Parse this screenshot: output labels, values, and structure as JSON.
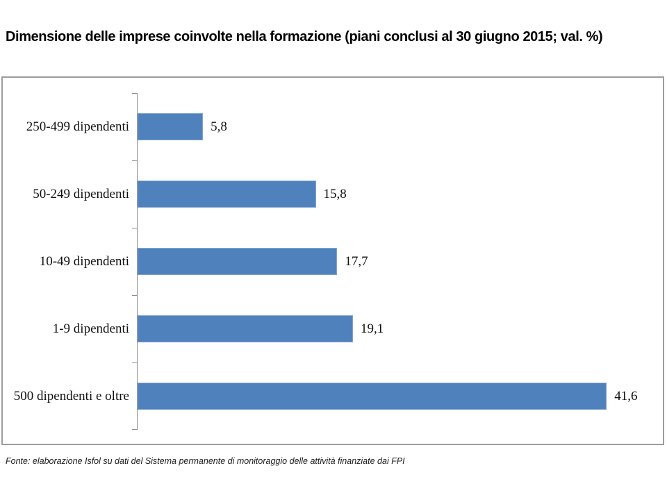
{
  "page": {
    "title": "Dimensione delle imprese coinvolte nella formazione (piani conclusi al 30 giugno 2015; val. %)",
    "source_note": "Fonte: elaborazione Isfol su dati del Sistema permanente di monitoraggio delle attività finanziate dai FPI"
  },
  "chart_data": {
    "type": "bar",
    "orientation": "horizontal",
    "title": "Dimensione delle imprese coinvolte nella formazione (piani conclusi al 30 giugno 2015; val. %)",
    "categories": [
      "250-499 dipendenti",
      "50-249 dipendenti",
      "10-49 dipendenti",
      "1-9 dipendenti",
      "500 dipendenti e oltre"
    ],
    "values": [
      5.8,
      15.8,
      17.7,
      19.1,
      41.6
    ],
    "value_labels": [
      "5,8",
      "15,8",
      "17,7",
      "19,1",
      "41,6"
    ],
    "xlabel": "",
    "ylabel": "",
    "xlim": [
      0,
      46.2
    ],
    "grid": false,
    "legend": false,
    "data_labels": "outside-end",
    "bar_color": "#4f81bd",
    "axis_color": "#8e8e8e",
    "frame_color": "#9c9c9c"
  }
}
